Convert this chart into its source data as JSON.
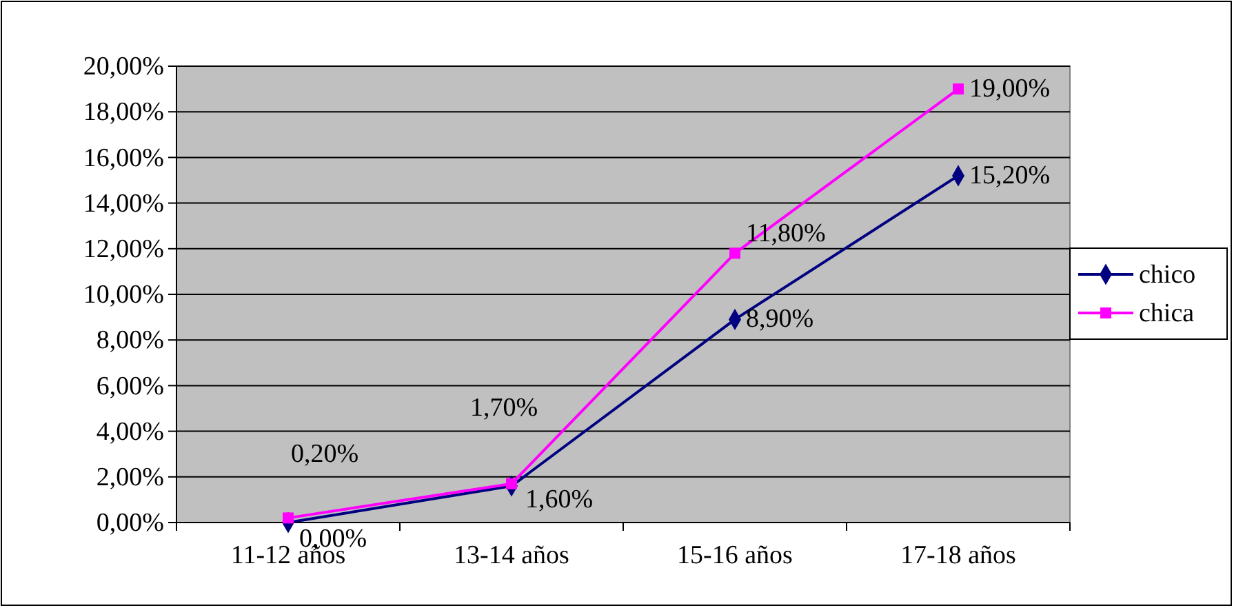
{
  "chart_data": {
    "type": "line",
    "categories": [
      "11-12 años",
      "13-14 años",
      "15-16 años",
      "17-18 años"
    ],
    "series": [
      {
        "name": "chico",
        "color": "#000080",
        "marker": "diamond",
        "values": [
          0,
          1.6,
          8.9,
          15.2
        ],
        "value_labels": [
          "0,00%",
          "1,60%",
          "8,90%",
          "15,20%"
        ]
      },
      {
        "name": "chica",
        "color": "#ff00ff",
        "marker": "square",
        "values": [
          0.2,
          1.7,
          11.8,
          19.0
        ],
        "value_labels": [
          "0,20%",
          "1,70%",
          "11,80%",
          "19,00%"
        ]
      }
    ],
    "ylim": [
      0,
      20
    ],
    "yticks": [
      {
        "value": 0,
        "label": "0,00%"
      },
      {
        "value": 2,
        "label": "2,00%"
      },
      {
        "value": 4,
        "label": "4,00%"
      },
      {
        "value": 6,
        "label": "6,00%"
      },
      {
        "value": 8,
        "label": "8,00%"
      },
      {
        "value": 10,
        "label": "10,00%"
      },
      {
        "value": 12,
        "label": "12,00%"
      },
      {
        "value": 14,
        "label": "14,00%"
      },
      {
        "value": 16,
        "label": "16,00%"
      },
      {
        "value": 18,
        "label": "18,00%"
      },
      {
        "value": 20,
        "label": "20,00%"
      }
    ],
    "grid": "y",
    "legend": "right",
    "line_style": "solid"
  }
}
